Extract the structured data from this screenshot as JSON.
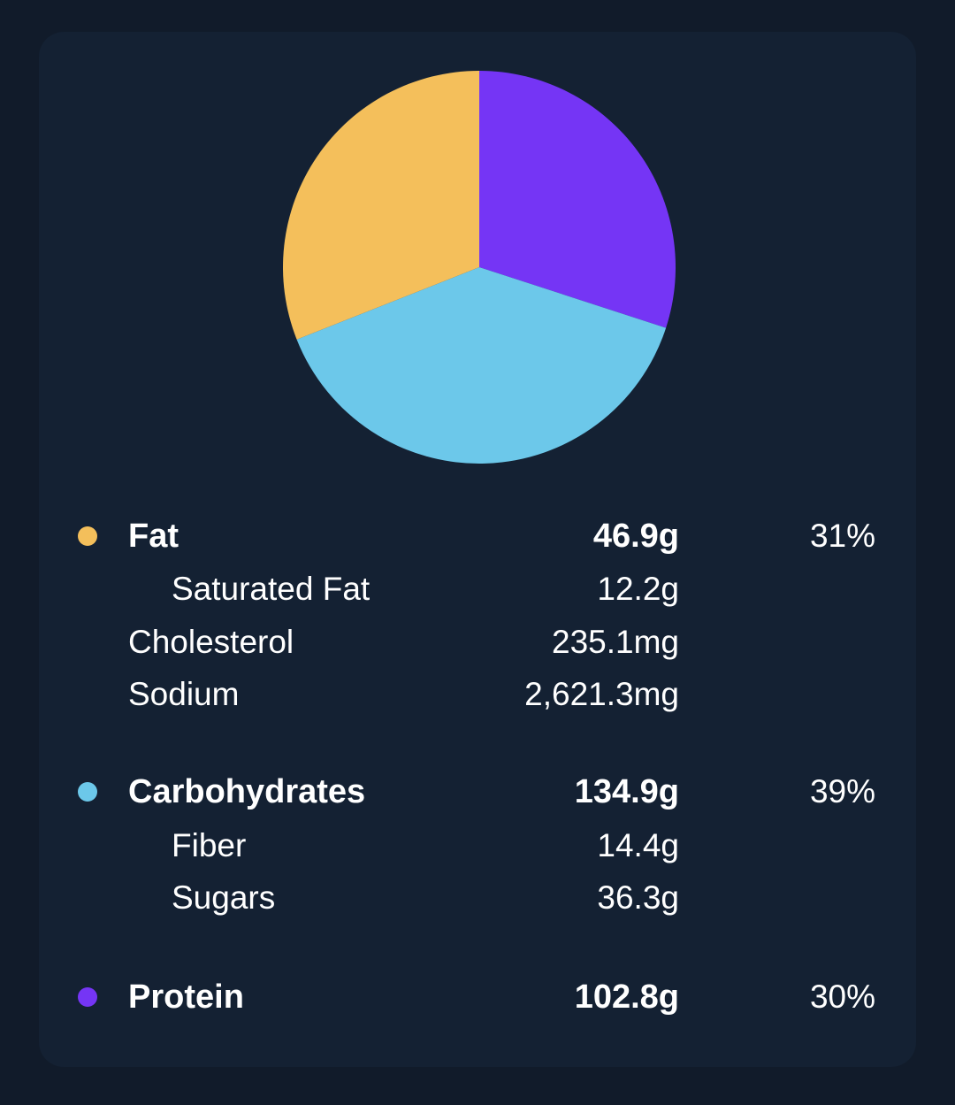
{
  "colors": {
    "fat": "#f4bf5b",
    "carbohydrates": "#6cc8ea",
    "protein": "#7535f5"
  },
  "chart_data": {
    "type": "pie",
    "categories": [
      "Protein",
      "Carbohydrates",
      "Fat"
    ],
    "values": [
      30,
      39,
      31
    ],
    "colors": [
      "#7535f5",
      "#6cc8ea",
      "#f4bf5b"
    ]
  },
  "macros": {
    "fat": {
      "label": "Fat",
      "amount": "46.9g",
      "percent": "31%",
      "details": {
        "saturated_fat": {
          "label": "Saturated Fat",
          "amount": "12.2g"
        },
        "cholesterol": {
          "label": "Cholesterol",
          "amount": "235.1mg"
        },
        "sodium": {
          "label": "Sodium",
          "amount": "2,621.3mg"
        }
      }
    },
    "carbohydrates": {
      "label": "Carbohydrates",
      "amount": "134.9g",
      "percent": "39%",
      "details": {
        "fiber": {
          "label": "Fiber",
          "amount": "14.4g"
        },
        "sugars": {
          "label": "Sugars",
          "amount": "36.3g"
        }
      }
    },
    "protein": {
      "label": "Protein",
      "amount": "102.8g",
      "percent": "30%"
    }
  }
}
